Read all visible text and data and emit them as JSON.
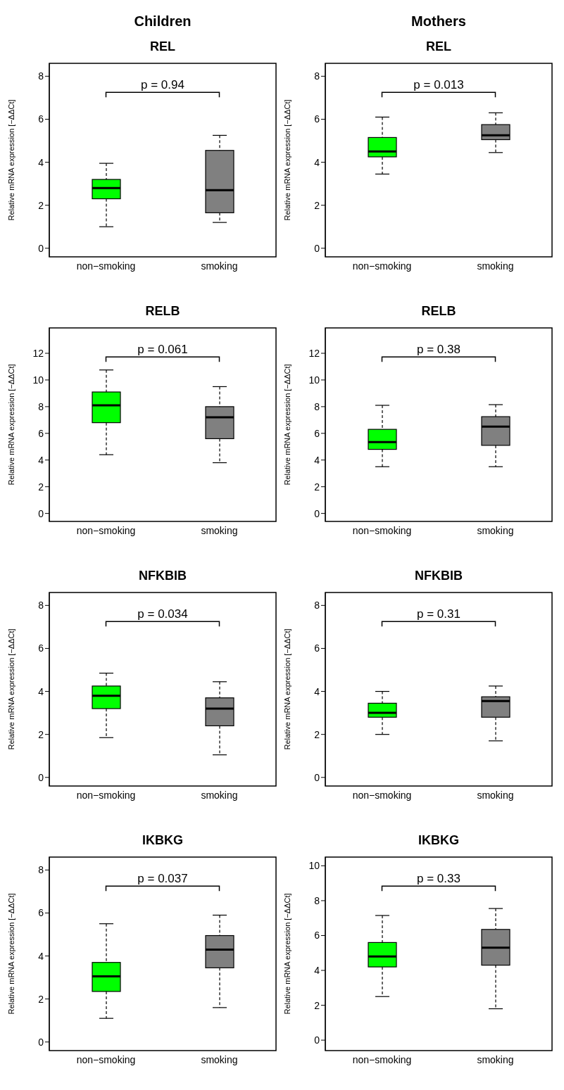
{
  "chart_data": [
    {
      "type": "box",
      "subtitle": "Children",
      "title": "REL",
      "ylabel": "Relative mRNA expression [−ΔΔCt]",
      "categories": [
        "non−smoking",
        "smoking"
      ],
      "colors": [
        "#00ff00",
        "#808080"
      ],
      "ylim": [
        -0.4,
        8.6
      ],
      "yticks": [
        0,
        2,
        4,
        6,
        8
      ],
      "annotations": [
        "p = 0.94"
      ],
      "boxes": [
        {
          "low": 1.0,
          "q1": 2.3,
          "median": 2.8,
          "q3": 3.2,
          "high": 3.95
        },
        {
          "low": 1.2,
          "q1": 1.65,
          "median": 2.7,
          "q3": 4.55,
          "high": 5.25
        }
      ]
    },
    {
      "type": "box",
      "subtitle": "Mothers",
      "title": "REL",
      "ylabel": "Relative mRNA expression [−ΔΔCt]",
      "categories": [
        "non−smoking",
        "smoking"
      ],
      "colors": [
        "#00ff00",
        "#808080"
      ],
      "ylim": [
        -0.4,
        8.6
      ],
      "yticks": [
        0,
        2,
        4,
        6,
        8
      ],
      "annotations": [
        "p = 0.013"
      ],
      "boxes": [
        {
          "low": 3.45,
          "q1": 4.25,
          "median": 4.5,
          "q3": 5.15,
          "high": 6.1
        },
        {
          "low": 4.45,
          "q1": 5.05,
          "median": 5.25,
          "q3": 5.75,
          "high": 6.3
        }
      ]
    },
    {
      "type": "box",
      "title": "RELB",
      "ylabel": "Relative mRNA expression [−ΔΔCt]",
      "categories": [
        "non−smoking",
        "smoking"
      ],
      "colors": [
        "#00ff00",
        "#808080"
      ],
      "ylim": [
        -0.6,
        13.9
      ],
      "yticks": [
        0,
        2,
        4,
        6,
        8,
        10,
        12
      ],
      "annotations": [
        "p = 0.061"
      ],
      "boxes": [
        {
          "low": 4.4,
          "q1": 6.8,
          "median": 8.1,
          "q3": 9.1,
          "high": 10.75
        },
        {
          "low": 3.8,
          "q1": 5.6,
          "median": 7.2,
          "q3": 8.0,
          "high": 9.5
        }
      ]
    },
    {
      "type": "box",
      "title": "RELB",
      "ylabel": "Relative mRNA expression [−ΔΔCt]",
      "categories": [
        "non−smoking",
        "smoking"
      ],
      "colors": [
        "#00ff00",
        "#808080"
      ],
      "ylim": [
        -0.6,
        13.9
      ],
      "yticks": [
        0,
        2,
        4,
        6,
        8,
        10,
        12
      ],
      "annotations": [
        "p = 0.38"
      ],
      "boxes": [
        {
          "low": 3.5,
          "q1": 4.8,
          "median": 5.35,
          "q3": 6.3,
          "high": 8.1
        },
        {
          "low": 3.5,
          "q1": 5.1,
          "median": 6.5,
          "q3": 7.25,
          "high": 8.15
        }
      ]
    },
    {
      "type": "box",
      "title": "NFKBIB",
      "ylabel": "Relative mRNA expression [−ΔΔCt]",
      "categories": [
        "non−smoking",
        "smoking"
      ],
      "colors": [
        "#00ff00",
        "#808080"
      ],
      "ylim": [
        -0.4,
        8.6
      ],
      "yticks": [
        0,
        2,
        4,
        6,
        8
      ],
      "annotations": [
        "p = 0.034"
      ],
      "boxes": [
        {
          "low": 1.85,
          "q1": 3.2,
          "median": 3.8,
          "q3": 4.25,
          "high": 4.85
        },
        {
          "low": 1.05,
          "q1": 2.4,
          "median": 3.2,
          "q3": 3.7,
          "high": 4.45
        }
      ]
    },
    {
      "type": "box",
      "title": "NFKBIB",
      "ylabel": "Relative mRNA expression [−ΔΔCt]",
      "categories": [
        "non−smoking",
        "smoking"
      ],
      "colors": [
        "#00ff00",
        "#808080"
      ],
      "ylim": [
        -0.4,
        8.6
      ],
      "yticks": [
        0,
        2,
        4,
        6,
        8
      ],
      "annotations": [
        "p = 0.31"
      ],
      "boxes": [
        {
          "low": 2.0,
          "q1": 2.8,
          "median": 3.0,
          "q3": 3.45,
          "high": 4.0
        },
        {
          "low": 1.7,
          "q1": 2.8,
          "median": 3.55,
          "q3": 3.75,
          "high": 4.25
        }
      ]
    },
    {
      "type": "box",
      "title": "IKBKG",
      "ylabel": "Relative mRNA expression [−ΔΔCt]",
      "categories": [
        "non−smoking",
        "smoking"
      ],
      "colors": [
        "#00ff00",
        "#808080"
      ],
      "ylim": [
        -0.4,
        8.6
      ],
      "yticks": [
        0,
        2,
        4,
        6,
        8
      ],
      "annotations": [
        "p = 0.037"
      ],
      "boxes": [
        {
          "low": 1.1,
          "q1": 2.35,
          "median": 3.05,
          "q3": 3.7,
          "high": 5.5
        },
        {
          "low": 1.6,
          "q1": 3.45,
          "median": 4.3,
          "q3": 4.95,
          "high": 5.9
        }
      ]
    },
    {
      "type": "box",
      "title": "IKBKG",
      "ylabel": "Relative mRNA expression [−ΔΔCt]",
      "categories": [
        "non−smoking",
        "smoking"
      ],
      "colors": [
        "#00ff00",
        "#808080"
      ],
      "ylim": [
        -0.6,
        10.5
      ],
      "yticks": [
        0,
        2,
        4,
        6,
        8,
        10
      ],
      "annotations": [
        "p = 0.33"
      ],
      "boxes": [
        {
          "low": 2.5,
          "q1": 4.2,
          "median": 4.8,
          "q3": 5.6,
          "high": 7.15
        },
        {
          "low": 1.8,
          "q1": 4.3,
          "median": 5.3,
          "q3": 6.35,
          "high": 7.55
        }
      ]
    }
  ]
}
